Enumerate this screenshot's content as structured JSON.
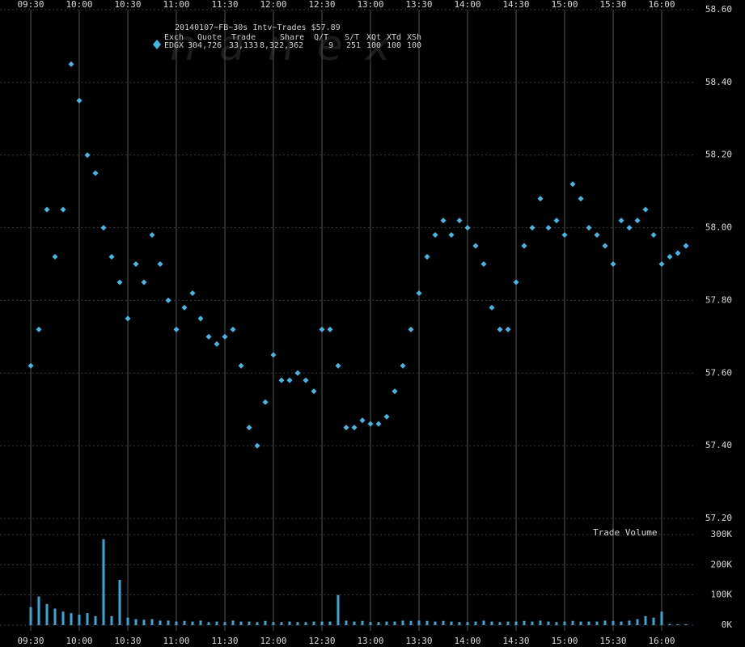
{
  "chart_data": [
    {
      "type": "scatter",
      "title": "20140107~FB~30s Intv~Trades $57.89",
      "table_header": [
        "Exch",
        "Quote",
        "Trade",
        "Share",
        "Q/T",
        "S/T",
        "XQt",
        "XTd",
        "XSh"
      ],
      "table_row": [
        "EDGX",
        "304,726",
        "33,133",
        "8,322,362",
        "9",
        "251",
        "100",
        "100",
        "100"
      ],
      "watermark": "nanex",
      "color": "#3fb9e8",
      "x": [
        570,
        575,
        580,
        585,
        590,
        595,
        600,
        605,
        610,
        615,
        620,
        625,
        630,
        635,
        640,
        645,
        650,
        655,
        660,
        665,
        670,
        675,
        680,
        685,
        690,
        695,
        700,
        705,
        710,
        715,
        720,
        725,
        730,
        735,
        740,
        745,
        750,
        755,
        760,
        765,
        770,
        775,
        780,
        785,
        790,
        795,
        800,
        805,
        810,
        815,
        820,
        825,
        830,
        835,
        840,
        845,
        850,
        855,
        860,
        865,
        870,
        875,
        880,
        885,
        890,
        895,
        900,
        905,
        910,
        915,
        920,
        925,
        930,
        935,
        940,
        945,
        950,
        955,
        960,
        965,
        970,
        975
      ],
      "values": [
        57.62,
        57.72,
        58.05,
        57.92,
        58.05,
        58.45,
        58.35,
        58.2,
        58.15,
        58.0,
        57.92,
        57.85,
        57.75,
        57.9,
        57.85,
        57.98,
        57.9,
        57.8,
        57.72,
        57.78,
        57.82,
        57.75,
        57.7,
        57.68,
        57.7,
        57.72,
        57.62,
        57.45,
        57.4,
        57.52,
        57.65,
        57.58,
        57.58,
        57.6,
        57.58,
        57.55,
        57.72,
        57.72,
        57.62,
        57.45,
        57.45,
        57.47,
        57.46,
        57.46,
        57.48,
        57.55,
        57.62,
        57.72,
        57.82,
        57.92,
        57.98,
        58.02,
        57.98,
        58.02,
        58.0,
        57.95,
        57.9,
        57.78,
        57.72,
        57.72,
        57.85,
        57.95,
        58.0,
        58.08,
        58.0,
        58.02,
        57.98,
        58.12,
        58.08,
        58.0,
        57.98,
        57.95,
        57.9,
        58.02,
        58.0,
        58.02,
        58.05,
        57.98,
        57.9,
        57.92,
        57.93,
        57.95
      ],
      "xlim": [
        551,
        981
      ],
      "xticks": [
        {
          "value": 570,
          "label": "09:30"
        },
        {
          "value": 600,
          "label": "10:00"
        },
        {
          "value": 630,
          "label": "10:30"
        },
        {
          "value": 660,
          "label": "11:00"
        },
        {
          "value": 690,
          "label": "11:30"
        },
        {
          "value": 720,
          "label": "12:00"
        },
        {
          "value": 750,
          "label": "12:30"
        },
        {
          "value": 780,
          "label": "13:00"
        },
        {
          "value": 810,
          "label": "13:30"
        },
        {
          "value": 840,
          "label": "14:00"
        },
        {
          "value": 870,
          "label": "14:30"
        },
        {
          "value": 900,
          "label": "15:00"
        },
        {
          "value": 930,
          "label": "15:30"
        },
        {
          "value": 960,
          "label": "16:00"
        }
      ],
      "ylim": [
        57.2,
        58.6
      ],
      "yticks": [
        {
          "value": 57.2,
          "label": "57.20"
        },
        {
          "value": 57.4,
          "label": "57.40"
        },
        {
          "value": 57.6,
          "label": "57.60"
        },
        {
          "value": 57.8,
          "label": "57.80"
        },
        {
          "value": 58.0,
          "label": "58.00"
        },
        {
          "value": 58.2,
          "label": "58.20"
        },
        {
          "value": 58.4,
          "label": "58.40"
        },
        {
          "value": 58.6,
          "label": "58.60"
        }
      ],
      "grid": true
    },
    {
      "type": "bar",
      "title": "Trade Volume",
      "color": "#3aa6d6",
      "x": [
        570,
        575,
        580,
        585,
        590,
        595,
        600,
        605,
        610,
        615,
        620,
        625,
        630,
        635,
        640,
        645,
        650,
        655,
        660,
        665,
        670,
        675,
        680,
        685,
        690,
        695,
        700,
        705,
        710,
        715,
        720,
        725,
        730,
        735,
        740,
        745,
        750,
        755,
        760,
        765,
        770,
        775,
        780,
        785,
        790,
        795,
        800,
        805,
        810,
        815,
        820,
        825,
        830,
        835,
        840,
        845,
        850,
        855,
        860,
        865,
        870,
        875,
        880,
        885,
        890,
        895,
        900,
        905,
        910,
        915,
        920,
        925,
        930,
        935,
        940,
        945,
        950,
        955,
        960,
        965,
        970,
        975
      ],
      "values": [
        60000,
        95000,
        70000,
        55000,
        45000,
        40000,
        35000,
        40000,
        30000,
        285000,
        30000,
        150000,
        25000,
        20000,
        18000,
        20000,
        15000,
        15000,
        12000,
        14000,
        12000,
        15000,
        10000,
        12000,
        10000,
        15000,
        12000,
        12000,
        10000,
        14000,
        10000,
        10000,
        12000,
        10000,
        10000,
        12000,
        12000,
        12000,
        100000,
        15000,
        12000,
        14000,
        10000,
        10000,
        12000,
        12000,
        15000,
        14000,
        15000,
        14000,
        12000,
        14000,
        12000,
        10000,
        10000,
        12000,
        15000,
        12000,
        10000,
        12000,
        12000,
        14000,
        12000,
        15000,
        12000,
        10000,
        12000,
        14000,
        12000,
        12000,
        12000,
        15000,
        14000,
        12000,
        15000,
        20000,
        30000,
        25000,
        45000,
        4000,
        3000,
        3000
      ],
      "xlim": [
        551,
        981
      ],
      "ylim": [
        0,
        300000
      ],
      "yticks": [
        {
          "value": 0,
          "label": "0K"
        },
        {
          "value": 100000,
          "label": "100K"
        },
        {
          "value": 200000,
          "label": "200K"
        },
        {
          "value": 300000,
          "label": "300K"
        }
      ]
    }
  ]
}
